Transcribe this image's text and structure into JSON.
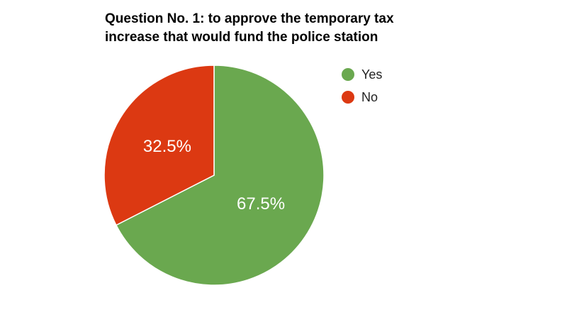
{
  "chart_data": {
    "type": "pie",
    "title": "Question No. 1: to approve the temporary tax increase that would fund the police station",
    "title_lines": [
      "Question No. 1: to approve the temporary tax",
      "increase that would fund the police station"
    ],
    "legend_position": "right",
    "slices": [
      {
        "name": "Yes",
        "value": 67.5,
        "label": "67.5%",
        "color": "#6aa84f"
      },
      {
        "name": "No",
        "value": 32.5,
        "label": "32.5%",
        "color": "#dc3912"
      }
    ]
  }
}
